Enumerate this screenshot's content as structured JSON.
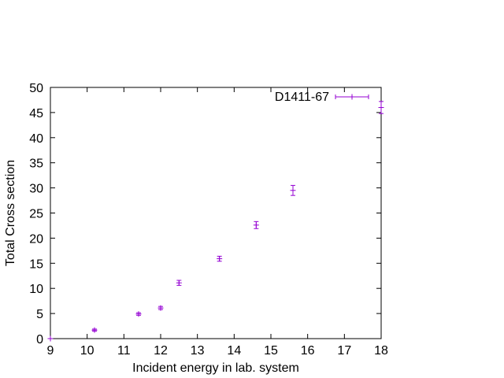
{
  "chart_data": {
    "type": "scatter",
    "title": "",
    "xlabel": "Incident energy in lab. system",
    "ylabel": "Total Cross section",
    "xlim": [
      9,
      18
    ],
    "ylim": [
      0,
      50
    ],
    "x_ticks": [
      9,
      10,
      11,
      12,
      13,
      14,
      15,
      16,
      17,
      18
    ],
    "y_ticks": [
      0,
      5,
      10,
      15,
      20,
      25,
      30,
      35,
      40,
      45,
      50
    ],
    "grid": false,
    "legend_position": "top-right",
    "series": [
      {
        "name": "D1411-67",
        "color": "#9400d3",
        "marker": "plus-with-error-bars",
        "points": [
          {
            "x": 9.0,
            "y": 0.0,
            "yerr": 0.0
          },
          {
            "x": 10.2,
            "y": 1.7,
            "yerr": 0.2
          },
          {
            "x": 11.4,
            "y": 4.9,
            "yerr": 0.25
          },
          {
            "x": 12.0,
            "y": 6.1,
            "yerr": 0.3
          },
          {
            "x": 12.5,
            "y": 11.1,
            "yerr": 0.5
          },
          {
            "x": 13.6,
            "y": 15.9,
            "yerr": 0.5
          },
          {
            "x": 14.6,
            "y": 22.6,
            "yerr": 0.7
          },
          {
            "x": 15.6,
            "y": 29.5,
            "yerr": 1.0
          },
          {
            "x": 18.0,
            "y": 46.0,
            "yerr": 1.2
          }
        ]
      }
    ]
  }
}
